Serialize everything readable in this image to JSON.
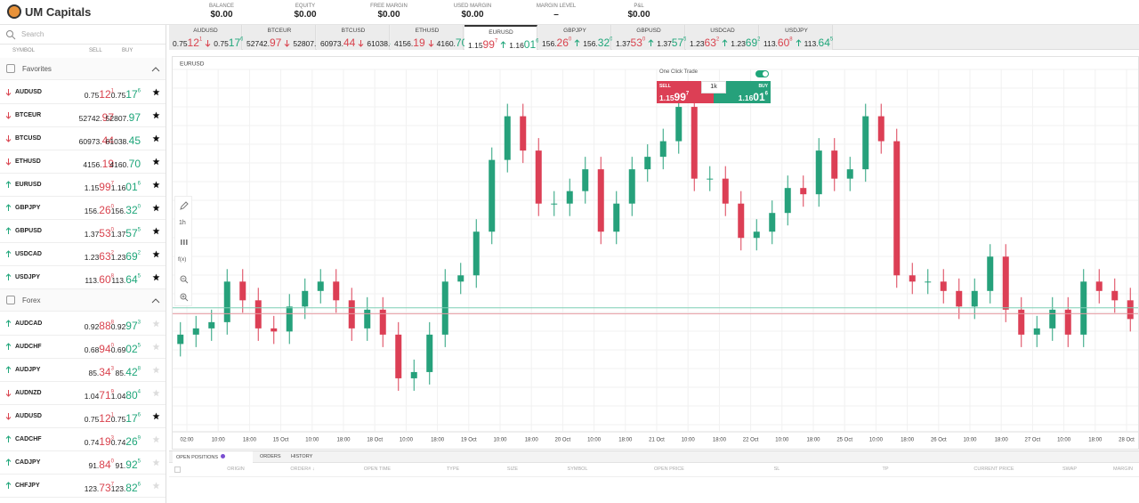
{
  "header": {
    "logo": "UM Capitals",
    "stats": [
      {
        "label": "BALANCE",
        "value": "$0.00"
      },
      {
        "label": "EQUITY",
        "value": "$0.00"
      },
      {
        "label": "FREE MARGIN",
        "value": "$0.00"
      },
      {
        "label": "USED MARGIN",
        "value": "$0.00"
      },
      {
        "label": "MARGIN LEVEL",
        "value": "–"
      },
      {
        "label": "P&L",
        "value": "$0.00"
      }
    ]
  },
  "sidebar": {
    "search": "Search",
    "columns": [
      "SYMBOL",
      "SELL",
      "BUY"
    ],
    "sections": [
      {
        "title": "Favorites",
        "rows": [
          {
            "symbol": "AUDUSD",
            "dir": "down",
            "fav": true,
            "sell": [
              "0.75",
              "12",
              "1"
            ],
            "buy": [
              "0.75",
              "17",
              "6"
            ]
          },
          {
            "symbol": "BTCEUR",
            "dir": "down",
            "fav": true,
            "sell": [
              "52742.",
              "97"
            ],
            "buy": [
              "52807.",
              "97"
            ]
          },
          {
            "symbol": "BTCUSD",
            "dir": "down",
            "fav": true,
            "sell": [
              "60973.",
              "44"
            ],
            "buy": [
              "61038.",
              "45"
            ]
          },
          {
            "symbol": "ETHUSD",
            "dir": "down",
            "fav": true,
            "sell": [
              "4156.",
              "19"
            ],
            "buy": [
              "4160.",
              "70"
            ]
          },
          {
            "symbol": "EURUSD",
            "dir": "up",
            "fav": true,
            "sell": [
              "1.15",
              "99",
              "7"
            ],
            "buy": [
              "1.16",
              "01",
              "6"
            ]
          },
          {
            "symbol": "GBPJPY",
            "dir": "up",
            "fav": true,
            "sell": [
              "156.",
              "26",
              "0"
            ],
            "buy": [
              "156.",
              "32",
              "0"
            ]
          },
          {
            "symbol": "GBPUSD",
            "dir": "up",
            "fav": true,
            "sell": [
              "1.37",
              "53",
              "0"
            ],
            "buy": [
              "1.37",
              "57",
              "5"
            ]
          },
          {
            "symbol": "USDCAD",
            "dir": "up",
            "fav": true,
            "sell": [
              "1.23",
              "63",
              "2"
            ],
            "buy": [
              "1.23",
              "69",
              "2"
            ]
          },
          {
            "symbol": "USDJPY",
            "dir": "up",
            "fav": true,
            "sell": [
              "113.",
              "60",
              "8"
            ],
            "buy": [
              "113.",
              "64",
              "5"
            ]
          }
        ]
      },
      {
        "title": "Forex",
        "rows": [
          {
            "symbol": "AUDCAD",
            "dir": "up",
            "fav": false,
            "sell": [
              "0.92",
              "88",
              "8"
            ],
            "buy": [
              "0.92",
              "97",
              "3"
            ]
          },
          {
            "symbol": "AUDCHF",
            "dir": "up",
            "fav": false,
            "sell": [
              "0.68",
              "94",
              "0"
            ],
            "buy": [
              "0.69",
              "02",
              "5"
            ]
          },
          {
            "symbol": "AUDJPY",
            "dir": "up",
            "fav": false,
            "sell": [
              "85.",
              "34",
              "3"
            ],
            "buy": [
              "85.",
              "42",
              "8"
            ]
          },
          {
            "symbol": "AUDNZD",
            "dir": "down",
            "fav": false,
            "sell": [
              "1.04",
              "71",
              "9"
            ],
            "buy": [
              "1.04",
              "80",
              "4"
            ]
          },
          {
            "symbol": "AUDUSD",
            "dir": "down",
            "fav": true,
            "sell": [
              "0.75",
              "12",
              "1"
            ],
            "buy": [
              "0.75",
              "17",
              "6"
            ]
          },
          {
            "symbol": "CADCHF",
            "dir": "up",
            "fav": false,
            "sell": [
              "0.74",
              "19",
              "3"
            ],
            "buy": [
              "0.74",
              "26",
              "9"
            ]
          },
          {
            "symbol": "CADJPY",
            "dir": "up",
            "fav": false,
            "sell": [
              "91.",
              "84",
              "0"
            ],
            "buy": [
              "91.",
              "92",
              "5"
            ]
          },
          {
            "symbol": "CHFJPY",
            "dir": "up",
            "fav": false,
            "sell": [
              "123.",
              "73",
              "7"
            ],
            "buy": [
              "123.",
              "82",
              "6"
            ]
          }
        ]
      }
    ]
  },
  "active_tab": 4,
  "toolbar": {
    "interval": "1h",
    "indicators": "f(x)"
  },
  "trade_panel": {
    "label": "One Click Trade",
    "sell_label": "SELL",
    "buy_label": "BUY",
    "size": "1k"
  },
  "chart_data": {
    "type": "candlestick",
    "symbol": "EURUSD",
    "colors": {
      "up": "#26a17b",
      "down": "#dc3f55"
    },
    "x_labels": [
      "02:00",
      "10:00",
      "18:00",
      "15 Oct",
      "10:00",
      "18:00",
      "18 Oct",
      "10:00",
      "18:00",
      "19 Oct",
      "10:00",
      "18:00",
      "20 Oct",
      "10:00",
      "18:00",
      "21 Oct",
      "10:00",
      "18:00",
      "22 Oct",
      "10:00",
      "18:00",
      "25 Oct",
      "10:00",
      "18:00",
      "26 Oct",
      "10:00",
      "18:00",
      "27 Oct",
      "10:00",
      "18:00",
      "28 Oct"
    ],
    "ylim": [
      1.1563,
      1.168
    ],
    "bid": 1.15997,
    "ask": 1.16016,
    "open": [
      1.159,
      1.1593,
      1.1595,
      1.1597,
      1.161,
      1.1604,
      1.1595,
      1.1594,
      1.1602,
      1.1607,
      1.161,
      1.1604,
      1.1595,
      1.1601,
      1.1593,
      1.1579,
      1.1581,
      1.1593,
      1.161,
      1.1612,
      1.1626,
      1.1649,
      1.1663,
      1.1652,
      1.1635,
      1.1635,
      1.1639,
      1.1646,
      1.1626,
      1.1635,
      1.1646,
      1.165,
      1.1655,
      1.1666,
      1.1643,
      1.1643,
      1.1635,
      1.1624,
      1.1626,
      1.1632,
      1.164,
      1.1638,
      1.1652,
      1.1643,
      1.1646,
      1.1663,
      1.1655,
      1.1612,
      1.161,
      1.161,
      1.1607,
      1.1602,
      1.1607,
      1.1618,
      1.1601,
      1.1593,
      1.1595,
      1.1601,
      1.1593,
      1.161,
      1.1607,
      1.1604
    ],
    "high": [
      1.1597,
      1.1599,
      1.1601,
      1.1614,
      1.1614,
      1.1608,
      1.1599,
      1.1606,
      1.1611,
      1.1614,
      1.1614,
      1.1608,
      1.1605,
      1.1605,
      1.1597,
      1.1585,
      1.1597,
      1.1614,
      1.1616,
      1.163,
      1.1653,
      1.1667,
      1.1667,
      1.1656,
      1.1639,
      1.1643,
      1.165,
      1.165,
      1.1639,
      1.165,
      1.1654,
      1.1659,
      1.167,
      1.167,
      1.1647,
      1.1647,
      1.1639,
      1.163,
      1.1636,
      1.1644,
      1.1644,
      1.1656,
      1.1656,
      1.165,
      1.1667,
      1.1667,
      1.1659,
      1.1616,
      1.1614,
      1.1614,
      1.1611,
      1.1611,
      1.1622,
      1.1622,
      1.1605,
      1.1599,
      1.1605,
      1.1605,
      1.1614,
      1.1614,
      1.1611,
      1.1608
    ],
    "low": [
      1.1586,
      1.1589,
      1.1591,
      1.1593,
      1.16,
      1.1591,
      1.159,
      1.159,
      1.1598,
      1.1603,
      1.16,
      1.1591,
      1.1591,
      1.1589,
      1.1575,
      1.1575,
      1.1577,
      1.1589,
      1.1606,
      1.1608,
      1.1622,
      1.1645,
      1.1648,
      1.1631,
      1.1631,
      1.1631,
      1.1635,
      1.1622,
      1.1622,
      1.1631,
      1.1642,
      1.1646,
      1.1651,
      1.1639,
      1.1639,
      1.1631,
      1.162,
      1.162,
      1.1622,
      1.1628,
      1.1634,
      1.1634,
      1.1639,
      1.1639,
      1.1642,
      1.1651,
      1.1608,
      1.1606,
      1.1606,
      1.1603,
      1.1598,
      1.1598,
      1.1603,
      1.1597,
      1.1589,
      1.1589,
      1.1591,
      1.1589,
      1.1589,
      1.1603,
      1.16,
      1.1594
    ],
    "close": [
      1.1593,
      1.1595,
      1.1597,
      1.161,
      1.1604,
      1.1595,
      1.1594,
      1.1602,
      1.1607,
      1.161,
      1.1604,
      1.1595,
      1.1601,
      1.1593,
      1.1579,
      1.1581,
      1.1593,
      1.161,
      1.1612,
      1.1626,
      1.1649,
      1.1663,
      1.1652,
      1.1635,
      1.1635,
      1.1639,
      1.1646,
      1.1626,
      1.1635,
      1.1646,
      1.165,
      1.1655,
      1.1666,
      1.1643,
      1.1643,
      1.1635,
      1.1624,
      1.1626,
      1.1632,
      1.164,
      1.1638,
      1.1652,
      1.1643,
      1.1646,
      1.1663,
      1.1655,
      1.1612,
      1.161,
      1.161,
      1.1607,
      1.1602,
      1.1607,
      1.1618,
      1.1601,
      1.1593,
      1.1595,
      1.1601,
      1.1593,
      1.161,
      1.1607,
      1.1604,
      1.1598
    ]
  },
  "positions": {
    "tabs": [
      "OPEN POSITIONS",
      "ORDERS",
      "HISTORY"
    ],
    "columns": [
      "ORIGIN",
      "ORDER# ↓",
      "OPEN TIME",
      "TYPE",
      "SIZE",
      "SYMBOL",
      "OPEN PRICE",
      "SL",
      "TP",
      "CURRENT PRICE",
      "SWAP",
      "MARGIN"
    ]
  }
}
